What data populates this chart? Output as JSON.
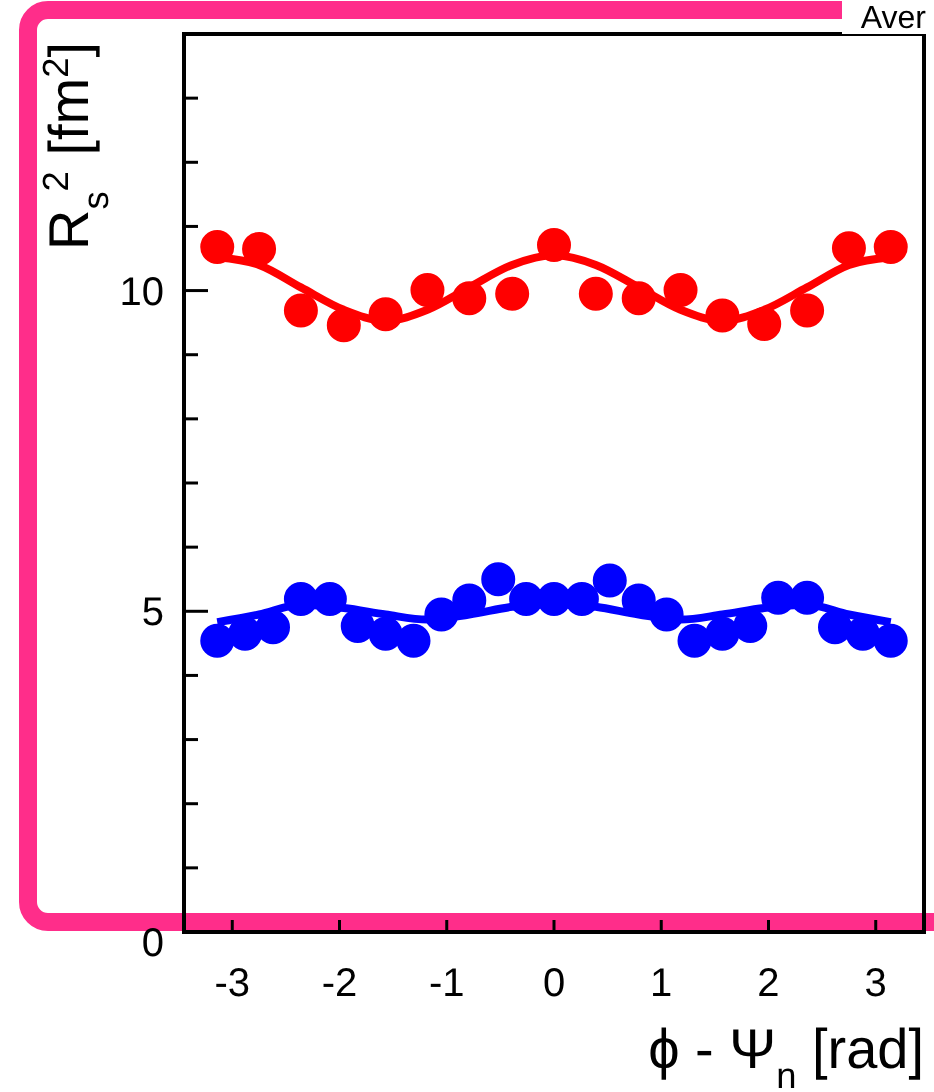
{
  "chart_data": {
    "type": "scatter",
    "xlabel": "ϕ - Ψ$_{n}$ [rad]",
    "ylabel": "R$_{s}$$^{2}$ [fm$^{2}$]",
    "annotations": [
      "Aver"
    ],
    "xlim": [
      -3.45,
      3.45
    ],
    "ylim": [
      0,
      14
    ],
    "xticks": [
      -3,
      -2,
      -1,
      0,
      1,
      2,
      3
    ],
    "yticks": [
      0,
      {
        "value": 1,
        "label": null
      },
      {
        "value": 2,
        "label": null
      },
      {
        "value": 3,
        "label": null
      },
      {
        "value": 4,
        "label": null
      },
      5,
      {
        "value": 6,
        "label": null
      },
      {
        "value": 7,
        "label": null
      },
      {
        "value": 8,
        "label": null
      },
      {
        "value": 9,
        "label": null
      },
      10,
      {
        "value": 11,
        "label": null
      },
      {
        "value": 12,
        "label": null
      },
      {
        "value": 13,
        "label": null
      }
    ],
    "grid": false,
    "marker": "circle",
    "series": [
      {
        "color": "#ff0000",
        "x": [
          -3.14,
          -2.75,
          -2.36,
          -1.96,
          -1.57,
          -1.18,
          -0.79,
          -0.39
        ],
        "values": [
          10.68,
          10.65,
          9.69,
          9.46,
          9.63,
          10.01,
          9.88,
          9.95
        ]
      },
      {
        "color": "#ff0000",
        "x": [
          0,
          0.39,
          0.79,
          1.18,
          1.57,
          1.96,
          2.36,
          2.75,
          3.14
        ],
        "values": [
          10.71,
          9.95,
          9.88,
          10.01,
          9.61,
          9.48,
          9.69,
          10.66,
          10.68
        ]
      },
      {
        "type": "line",
        "marker": "none",
        "color": "#ff0000",
        "x": [
          -3.14,
          -2.75,
          -2.36,
          -1.96,
          -1.57,
          -1.18,
          -0.79,
          -0.39,
          0,
          0.39,
          0.79,
          1.18,
          1.57,
          1.96,
          2.36,
          2.75,
          3.14
        ],
        "values": [
          10.52,
          10.4,
          10.05,
          9.7,
          9.53,
          9.7,
          10.05,
          10.4,
          10.55,
          10.4,
          10.05,
          9.7,
          9.53,
          9.7,
          10.05,
          10.4,
          10.52
        ]
      },
      {
        "color": "#0000ff",
        "x": [
          -3.14,
          -2.88,
          -2.62,
          -2.36,
          -2.09,
          -1.83,
          -1.57,
          -1.31,
          -1.05,
          -0.79,
          -0.52,
          -0.26,
          2.36,
          2.62,
          2.88,
          3.14
        ],
        "values": [
          4.54,
          4.65,
          4.75,
          5.19,
          5.19,
          4.77,
          4.65,
          4.54,
          4.95,
          5.17,
          5.5,
          5.19,
          5.21,
          4.75,
          4.65,
          4.54
        ]
      },
      {
        "color": "#0000ff",
        "x": [
          0,
          0.26,
          0.52,
          0.79,
          1.05,
          1.31,
          1.57,
          1.83,
          2.09
        ],
        "values": [
          5.19,
          5.19,
          5.48,
          5.17,
          4.95,
          4.54,
          4.65,
          4.77,
          5.21
        ]
      },
      {
        "type": "line",
        "marker": "none",
        "color": "#0000ff",
        "x": [
          -3.14,
          -2.75,
          -2.36,
          -1.96,
          -1.57,
          -1.18,
          -0.79,
          -0.39,
          0,
          0.39,
          0.79,
          1.18,
          1.57,
          1.96,
          2.36,
          2.75,
          3.14
        ],
        "values": [
          4.83,
          4.95,
          5.1,
          5.05,
          4.95,
          4.87,
          4.95,
          5.07,
          5.13,
          5.07,
          4.95,
          4.87,
          4.95,
          5.05,
          5.1,
          4.95,
          4.83
        ]
      }
    ]
  }
}
